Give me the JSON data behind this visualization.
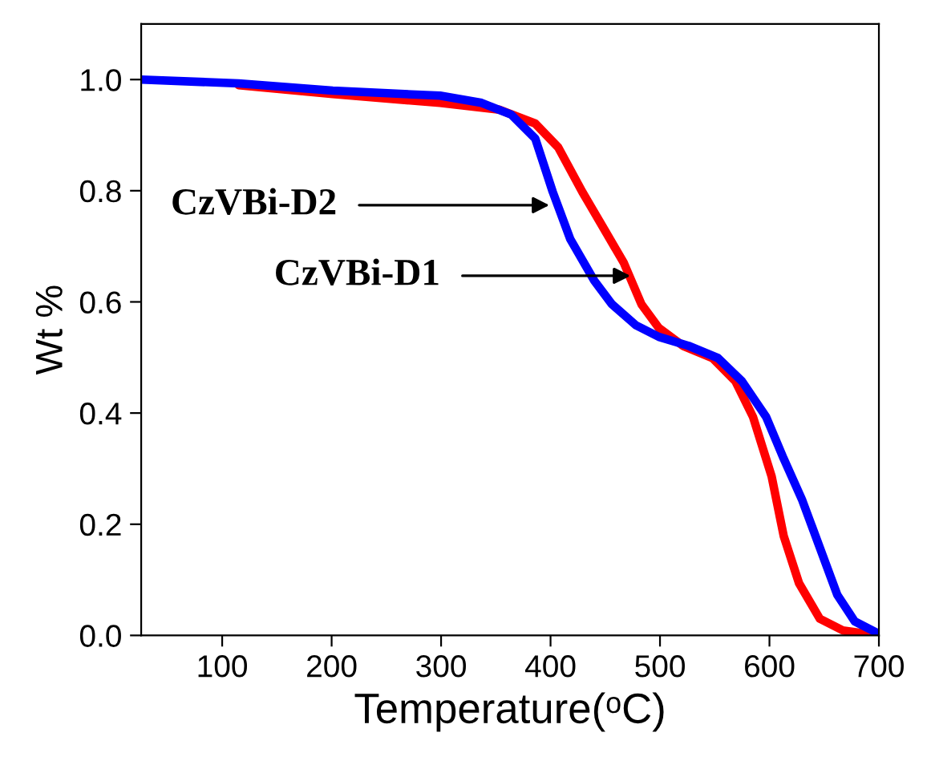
{
  "chart_data": {
    "type": "line",
    "xlabel": "Temperature(ᵒC)",
    "ylabel": "Wt %",
    "xlim": [
      26,
      700
    ],
    "ylim": [
      0,
      1.1
    ],
    "xticks": [
      100,
      200,
      300,
      400,
      500,
      600,
      700
    ],
    "yticks": [
      {
        "value": 0,
        "label": "0.0"
      },
      {
        "value": 0.2,
        "label": "0.2"
      },
      {
        "value": 0.4,
        "label": "0.4"
      },
      {
        "value": 0.6,
        "label": "0.6"
      },
      {
        "value": 0.8,
        "label": "0.8"
      },
      {
        "value": 1.0,
        "label": "1.0"
      }
    ],
    "grid": false,
    "legend": false,
    "marker": "none",
    "line_style": "solid",
    "series": [
      {
        "color": "#ff0000",
        "x": [
          115,
          201,
          299,
          353,
          386,
          407,
          429,
          451,
          467,
          483,
          499,
          521,
          548,
          569,
          585,
          602,
          613,
          627,
          646,
          667,
          700
        ],
        "values": [
          0.99,
          0.974,
          0.958,
          0.946,
          0.921,
          0.878,
          0.798,
          0.724,
          0.67,
          0.596,
          0.553,
          0.521,
          0.499,
          0.457,
          0.393,
          0.286,
          0.179,
          0.094,
          0.03,
          0.009,
          0.0
        ]
      },
      {
        "color": "#0000ff",
        "x": [
          26,
          115,
          201,
          299,
          337,
          364,
          386,
          402,
          418,
          440,
          456,
          478,
          499,
          526,
          553,
          575,
          597,
          613,
          630,
          646,
          662,
          678,
          700
        ],
        "values": [
          1.0,
          0.993,
          0.98,
          0.971,
          0.958,
          0.937,
          0.894,
          0.798,
          0.713,
          0.638,
          0.596,
          0.558,
          0.537,
          0.521,
          0.499,
          0.457,
          0.393,
          0.318,
          0.243,
          0.158,
          0.073,
          0.025,
          0.003
        ]
      }
    ],
    "annotations": [
      {
        "text": "CzVBi-D2",
        "x": 399,
        "y": 0.774
      },
      {
        "text": "CzVBi-D1",
        "x": 473,
        "y": 0.647
      }
    ]
  }
}
